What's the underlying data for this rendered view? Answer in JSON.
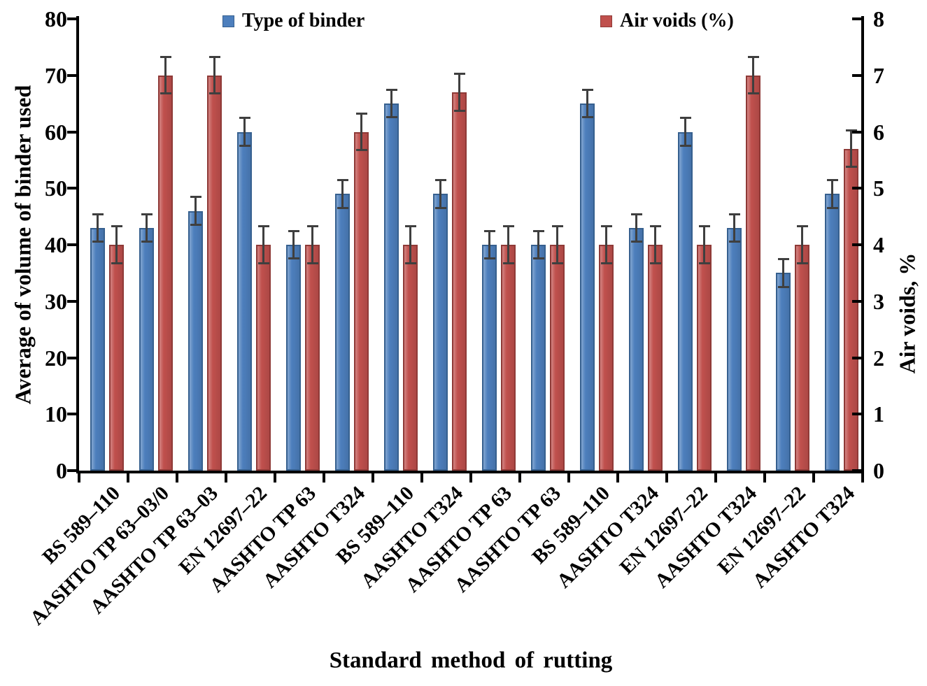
{
  "chart_data": {
    "type": "bar",
    "title": "",
    "xlabel": "Standard method of rutting",
    "legend_position": "top",
    "grid": false,
    "categories": [
      "BS 589–110",
      "AASHTO TP 63–03/0",
      "AASHTO TP 63–03",
      "EN 12697–22",
      "AASHTO TP 63",
      "AASHTO T324",
      "BS 589–110",
      "AASHTO T324",
      "AASHTO TP 63",
      "AASHTO TP 63",
      "BS 589–110",
      "AASHTO T324",
      "EN 12697–22",
      "AASHTO T324",
      "EN 12697–22",
      "AASHTO T324"
    ],
    "series": [
      {
        "name": "Type of binder",
        "axis": "left",
        "color": "#4D7FBD",
        "border_color": "#36608F",
        "values": [
          43,
          43,
          46,
          60,
          40,
          49,
          65,
          49,
          40,
          40,
          65,
          43,
          60,
          43,
          35,
          49
        ],
        "error_bar": 2.5
      },
      {
        "name": "Air voids (%)",
        "axis": "right",
        "color": "#C0504D",
        "border_color": "#8F3A37",
        "values": [
          4,
          7,
          7,
          4,
          4,
          6,
          4,
          6.7,
          4,
          4,
          4,
          4,
          4,
          7,
          4,
          5.7
        ],
        "error_bar": 0.33
      }
    ],
    "left_axis": {
      "title": "Average of volume of binder  used",
      "min": 0,
      "max": 80,
      "step": 10
    },
    "right_axis": {
      "title": "Air voids, %",
      "min": 0,
      "max": 8,
      "step": 1
    }
  }
}
